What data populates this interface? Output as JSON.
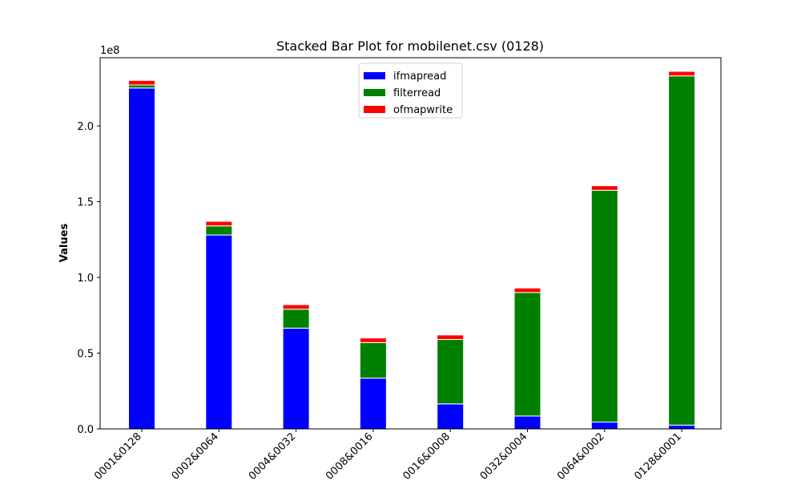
{
  "chart_data": {
    "type": "bar",
    "stacked": true,
    "title": "Stacked Bar Plot for mobilenet.csv (0128)",
    "xlabel": "",
    "ylabel": "Values",
    "y_offset_text": "1e8",
    "ylim": [
      0,
      245000000
    ],
    "yticks": [
      0,
      50000000,
      100000000,
      150000000,
      200000000
    ],
    "ytick_labels": [
      "0.0",
      "0.5",
      "1.0",
      "1.5",
      "2.0"
    ],
    "categories": [
      "0001&0128",
      "0002&0064",
      "0004&0032",
      "0008&0016",
      "0016&0008",
      "0032&0004",
      "0064&0002",
      "0128&0001"
    ],
    "series": [
      {
        "name": "ifmapread",
        "color": "#0000ff",
        "values": [
          225000000,
          128000000,
          66500000,
          33500000,
          16500000,
          8500000,
          4500000,
          2500000
        ]
      },
      {
        "name": "filterread",
        "color": "#008000",
        "values": [
          2000000,
          6000000,
          12500000,
          23500000,
          42500000,
          81500000,
          153000000,
          230500000
        ]
      },
      {
        "name": "ofmapwrite",
        "color": "#ff0000",
        "values": [
          3000000,
          3000000,
          3000000,
          3000000,
          3000000,
          3000000,
          3000000,
          3000000
        ]
      }
    ],
    "legend_position": "upper-center",
    "grid": false
  }
}
